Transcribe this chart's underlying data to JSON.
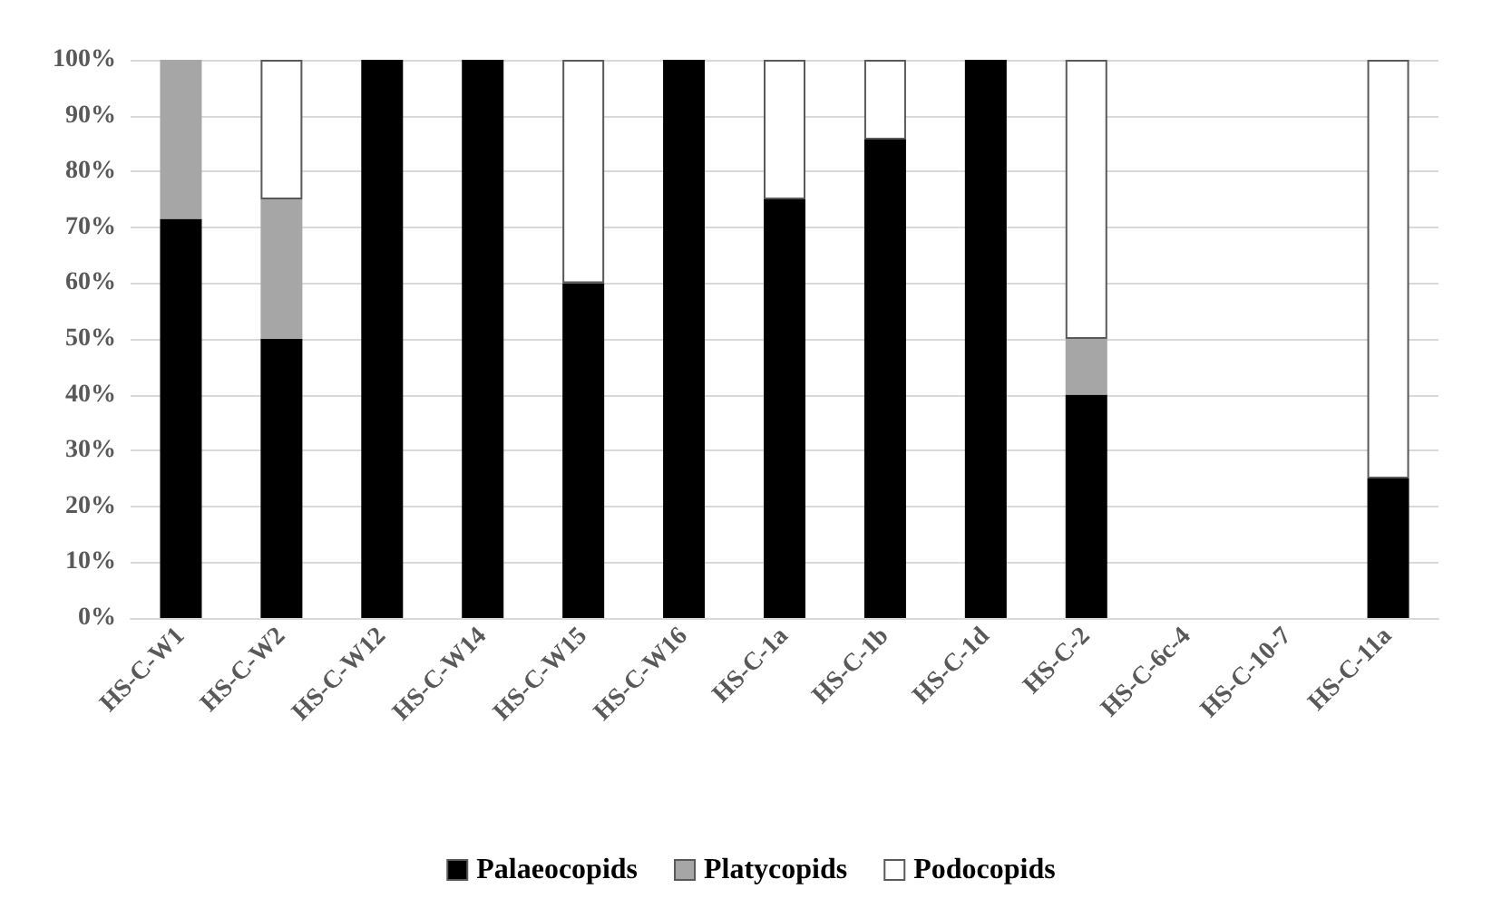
{
  "chart_data": {
    "type": "bar",
    "stacked": true,
    "categories": [
      "HS-C-W1",
      "HS-C-W2",
      "HS-C-W12",
      "HS-C-W14",
      "HS-C-W15",
      "HS-C-W16",
      "HS-C-1a",
      "HS-C-1b",
      "HS-C-1d",
      "HS-C-2",
      "HS-C-6c-4",
      "HS-C-10-7",
      "HS-C-11a"
    ],
    "series": [
      {
        "name": "Palaeocopids",
        "color": "#000000",
        "values": [
          71.5,
          50,
          100,
          100,
          60,
          100,
          75,
          85.7,
          100,
          40,
          0,
          0,
          25
        ]
      },
      {
        "name": "Platycopids",
        "color": "#a6a6a6",
        "values": [
          28.5,
          25,
          0,
          0,
          0,
          0,
          0,
          0,
          0,
          10,
          0,
          0,
          0
        ]
      },
      {
        "name": "Podocopids",
        "color": "#ffffff",
        "values": [
          0,
          25,
          0,
          0,
          40,
          0,
          25,
          14.3,
          0,
          50,
          0,
          0,
          75
        ]
      }
    ],
    "ylim": [
      0,
      100
    ],
    "yticks": [
      {
        "value": 0,
        "label": "0%"
      },
      {
        "value": 10,
        "label": "10%"
      },
      {
        "value": 20,
        "label": "20%"
      },
      {
        "value": 30,
        "label": "30%"
      },
      {
        "value": 40,
        "label": "40%"
      },
      {
        "value": 50,
        "label": "50%"
      },
      {
        "value": 60,
        "label": "60%"
      },
      {
        "value": 70,
        "label": "70%"
      },
      {
        "value": 80,
        "label": "80%"
      },
      {
        "value": 90,
        "label": "90%"
      },
      {
        "value": 100,
        "label": "100%"
      }
    ],
    "grid": "y",
    "legend": "bottom"
  }
}
